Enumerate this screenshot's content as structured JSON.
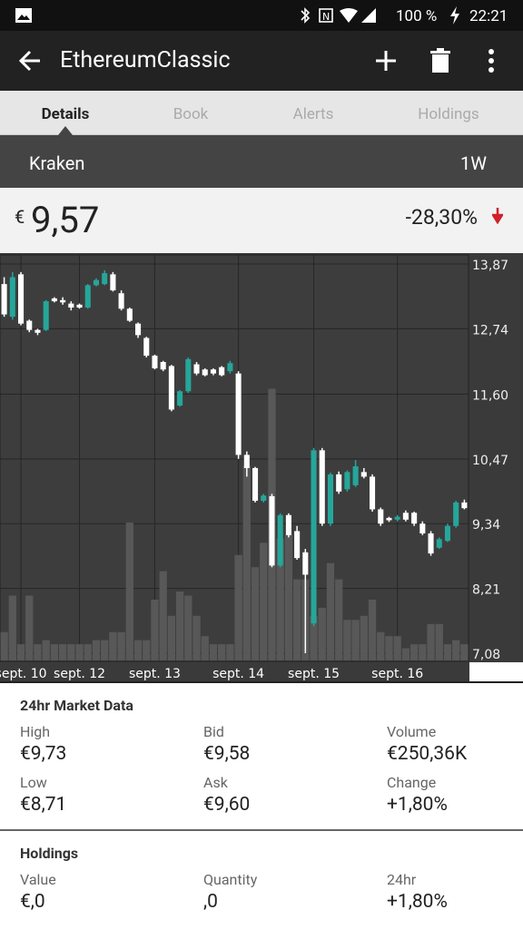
{
  "status_bar": {
    "battery": "100 %",
    "time": "22:21"
  },
  "toolbar": {
    "title": "EthereumClassic"
  },
  "tabs": [
    "Details",
    "Book",
    "Alerts",
    "Holdings"
  ],
  "exchange": {
    "name": "Kraken",
    "range": "1W"
  },
  "price": {
    "currency": "€",
    "value": "9,57",
    "change": "-28,30%"
  },
  "chart_data": {
    "type": "candlestick",
    "categories": [
      null,
      null,
      "sept. 10",
      null,
      null,
      null,
      null,
      null,
      null,
      "sept. 12",
      null,
      null,
      null,
      null,
      null,
      null,
      null,
      null,
      "sept. 13",
      null,
      null,
      null,
      null,
      null,
      null,
      null,
      null,
      null,
      "sept. 14",
      null,
      null,
      null,
      null,
      null,
      null,
      null,
      null,
      "sept. 15",
      null,
      null,
      null,
      null,
      null,
      null,
      null,
      null,
      null,
      "sept. 16",
      null,
      null,
      null,
      null,
      null,
      null,
      null,
      null
    ],
    "open": [
      13.52,
      12.95,
      13.69,
      12.88,
      12.72,
      12.72,
      13.27,
      13.24,
      13.18,
      13.16,
      13.11,
      13.5,
      13.52,
      13.69,
      13.36,
      13.09,
      12.83,
      12.58,
      12.27,
      12.16,
      12.09,
      11.4,
      11.65,
      12.12,
      12.03,
      12.03,
      12.07,
      12.0,
      11.96,
      10.54,
      10.31,
      9.74,
      9.82,
      8.61,
      9.49,
      9.21,
      8.84,
      7.6,
      10.62,
      9.34,
      10.2,
      9.94,
      10.01,
      10.24,
      10.16,
      9.59,
      9.44,
      9.41,
      9.53,
      9.53,
      9.34,
      9.17,
      8.92,
      9.04,
      9.3,
      9.71
    ],
    "high": [
      13.64,
      13.73,
      13.73,
      12.9,
      12.74,
      13.24,
      13.29,
      13.29,
      13.22,
      13.18,
      13.52,
      13.62,
      13.76,
      13.73,
      13.41,
      13.11,
      12.85,
      12.6,
      12.29,
      12.18,
      12.11,
      11.67,
      12.24,
      12.16,
      12.05,
      12.05,
      12.09,
      12.18,
      12.0,
      10.6,
      10.33,
      9.86,
      9.86,
      9.52,
      9.52,
      9.3,
      8.9,
      10.66,
      10.66,
      10.23,
      10.25,
      10.27,
      10.45,
      10.31,
      10.2,
      9.62,
      9.46,
      9.49,
      9.57,
      9.55,
      9.38,
      9.21,
      9.1,
      9.34,
      9.74,
      9.76
    ],
    "low": [
      12.95,
      12.9,
      12.8,
      12.68,
      12.63,
      12.7,
      13.2,
      13.16,
      13.06,
      13.09,
      13.09,
      13.48,
      13.5,
      13.39,
      13.06,
      12.86,
      12.58,
      12.24,
      12.03,
      12.0,
      11.3,
      11.38,
      11.62,
      11.93,
      11.91,
      11.93,
      11.91,
      11.96,
      10.47,
      10.16,
      9.71,
      9.71,
      8.58,
      8.58,
      9.1,
      8.71,
      7.08,
      7.55,
      9.3,
      9.3,
      9.86,
      9.9,
      9.98,
      10.13,
      9.55,
      9.3,
      9.37,
      9.38,
      9.38,
      9.3,
      9.14,
      8.78,
      8.9,
      9.02,
      9.27,
      9.59
    ],
    "close": [
      12.99,
      13.64,
      12.83,
      12.72,
      12.67,
      13.22,
      13.22,
      13.2,
      13.11,
      13.11,
      13.5,
      13.59,
      13.71,
      13.41,
      13.09,
      12.88,
      12.63,
      12.27,
      12.05,
      12.03,
      11.33,
      11.65,
      12.21,
      11.96,
      11.93,
      11.96,
      11.93,
      12.14,
      10.54,
      10.31,
      9.74,
      9.83,
      8.61,
      9.49,
      9.14,
      8.74,
      8.45,
      10.62,
      9.34,
      10.2,
      9.9,
      10.24,
      10.34,
      10.16,
      9.59,
      9.34,
      9.4,
      9.46,
      9.41,
      9.34,
      9.17,
      8.82,
      9.07,
      9.3,
      9.71,
      9.61
    ],
    "volume": [
      7,
      16,
      4,
      16,
      4,
      5,
      4,
      4,
      4,
      4,
      4,
      5,
      5,
      7,
      7,
      34,
      5,
      5,
      15,
      22,
      11,
      17,
      16,
      11,
      6,
      4,
      4,
      4,
      26,
      48,
      23,
      29,
      67,
      30,
      31,
      20,
      20,
      11,
      13,
      24,
      20,
      10,
      10,
      11,
      15,
      7,
      6,
      6,
      3,
      4,
      4,
      9,
      9,
      4,
      5,
      4
    ],
    "up_color": "#26a69a",
    "down_color": "#ffffff",
    "volume_color": "#585858",
    "ylim": [
      7.08,
      13.87
    ],
    "yticks": [
      {
        "value": 13.87,
        "label": "13,87"
      },
      {
        "value": 12.74,
        "label": "12,74"
      },
      {
        "value": 11.6,
        "label": "11,60"
      },
      {
        "value": 10.47,
        "label": "10,47"
      },
      {
        "value": 9.34,
        "label": "9,34"
      },
      {
        "value": 8.21,
        "label": "8,21"
      },
      {
        "value": 7.08,
        "label": "7,08"
      }
    ],
    "grid": true
  },
  "market_data": {
    "title": "24hr Market Data",
    "fields": [
      {
        "label": "High",
        "value": "€9,73"
      },
      {
        "label": "Bid",
        "value": "€9,58"
      },
      {
        "label": "Volume",
        "value": "€250,36K"
      },
      {
        "label": "Low",
        "value": "€8,71"
      },
      {
        "label": "Ask",
        "value": "€9,60"
      },
      {
        "label": "Change",
        "value": "+1,80%"
      }
    ]
  },
  "holdings": {
    "title": "Holdings",
    "fields": [
      {
        "label": "Value",
        "value": "€,0"
      },
      {
        "label": "Quantity",
        "value": ",0"
      },
      {
        "label": "24hr",
        "value": "+1,80%"
      }
    ]
  }
}
